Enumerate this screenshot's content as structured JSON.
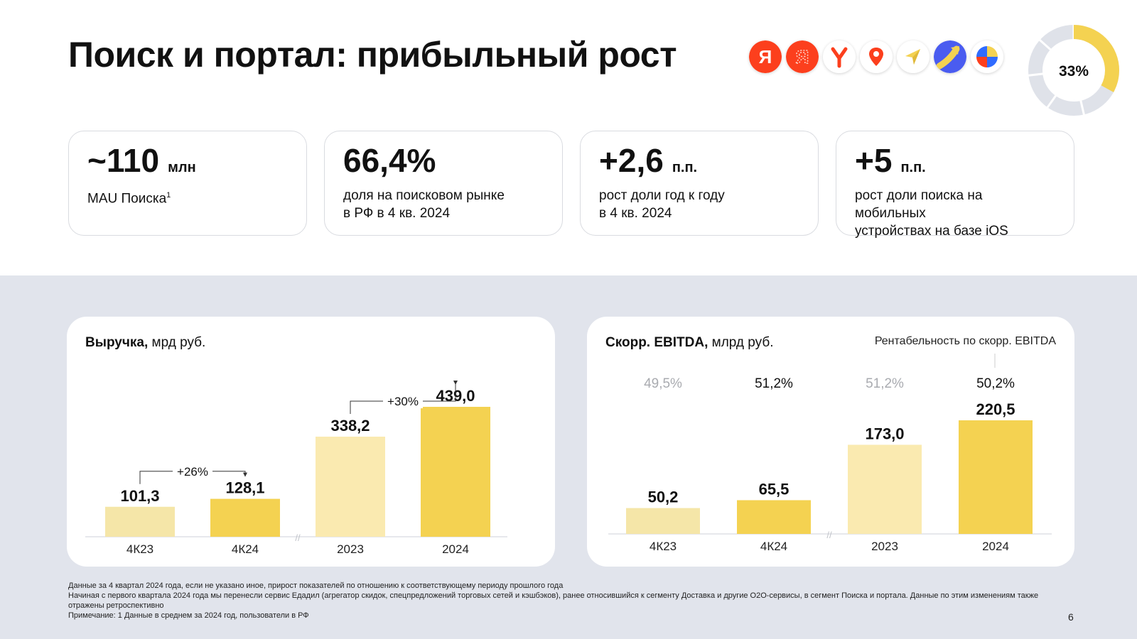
{
  "title": "Поиск и портал: прибыльный рост",
  "donut": {
    "label": "33%",
    "fraction": 0.33,
    "colors": {
      "accent": "#f4d251",
      "rest": "#dfe2e9"
    }
  },
  "logos": [
    {
      "icon": "yandex-ya-icon",
      "glyph": "Я",
      "bg": "#fc3f1d",
      "fg": "#ffffff"
    },
    {
      "icon": "yandex-app-icon",
      "glyph": "Я",
      "bg": "#fc3f1d",
      "fg": "#ffd0c4"
    },
    {
      "icon": "yandex-browser-icon",
      "glyph": "Y",
      "bg": "#ffffff",
      "fg": "#fc3f1d"
    },
    {
      "icon": "maps-pin-icon",
      "glyph": "",
      "bg": "#ffffff",
      "fg": "#fc3f1d"
    },
    {
      "icon": "navigator-arrow-icon",
      "glyph": "",
      "bg": "#ffffff",
      "fg": "#f4d251"
    },
    {
      "icon": "go-arrow-icon",
      "glyph": "",
      "bg": "#4a5cf0",
      "fg": "#f4d251"
    },
    {
      "icon": "messenger-icon",
      "glyph": "",
      "bg": "#ffffff",
      "fg": "#2f6bff"
    }
  ],
  "kpis": [
    {
      "value": "~110",
      "unit": "млн",
      "desc": "MAU Поиска",
      "sup": "1"
    },
    {
      "value": "66,4%",
      "unit": "",
      "desc": "доля на поисковом рынке\nв РФ в 4 кв. 2024",
      "sup": ""
    },
    {
      "value": "+2,6",
      "unit": "п.п.",
      "desc": "рост доли год к году\nв 4 кв. 2024",
      "sup": ""
    },
    {
      "value": "+5",
      "unit": "п.п.",
      "desc": "рост доли поиска на мобильных\nустройствах на базе iOS",
      "sup": ""
    }
  ],
  "colors": {
    "light_bar": "#f5e6a8",
    "pale_bar": "#faeab0",
    "dark_bar": "#f4d251",
    "gray_area": "#e1e4ec"
  },
  "chart_data": [
    {
      "type": "bar",
      "title_bold": "Выручка,",
      "title_rest": " мрд руб.",
      "categories": [
        "4К23",
        "4К24",
        "2023",
        "2024"
      ],
      "values": [
        101.3,
        128.1,
        338.2,
        439.0
      ],
      "value_labels": [
        "101,3",
        "128,1",
        "338,2",
        "439,0"
      ],
      "ylim": [
        0,
        439.0
      ],
      "annotations": [
        {
          "from": 0,
          "to": 1,
          "label": "+26%"
        },
        {
          "from": 2,
          "to": 3,
          "label": "+30%"
        }
      ]
    },
    {
      "type": "bar",
      "title_bold": "Скорр. EBITDA,",
      "title_rest": " млрд руб.",
      "subtitle": "Рентабельность по скорр. EBITDA",
      "categories": [
        "4К23",
        "4К24",
        "2023",
        "2024"
      ],
      "values": [
        50.2,
        65.5,
        173.0,
        220.5
      ],
      "value_labels": [
        "50,2",
        "65,5",
        "173,0",
        "220,5"
      ],
      "margins": [
        "49,5%",
        "51,2%",
        "51,2%",
        "50,2%"
      ],
      "ylim": [
        0,
        220.5
      ]
    }
  ],
  "footnotes": [
    "Данные за 4 квартал 2024 года, если не указано иное, прирост показателей по отношению к соответствующему периоду прошлого года",
    "Начиная с первого квартала 2024 года мы перенесли сервис Едадил (агрегатор скидок, спецпредложений торговых сетей и кэшбэков), ранее относившийся к сегменту Доставка и другие O2O-сервисы, в сегмент Поиска и портала. Данные по этим изменениям также отражены ретроспективно",
    "Примечание: 1 Данные в среднем за 2024 год, пользователи в РФ"
  ],
  "page_number": "6"
}
